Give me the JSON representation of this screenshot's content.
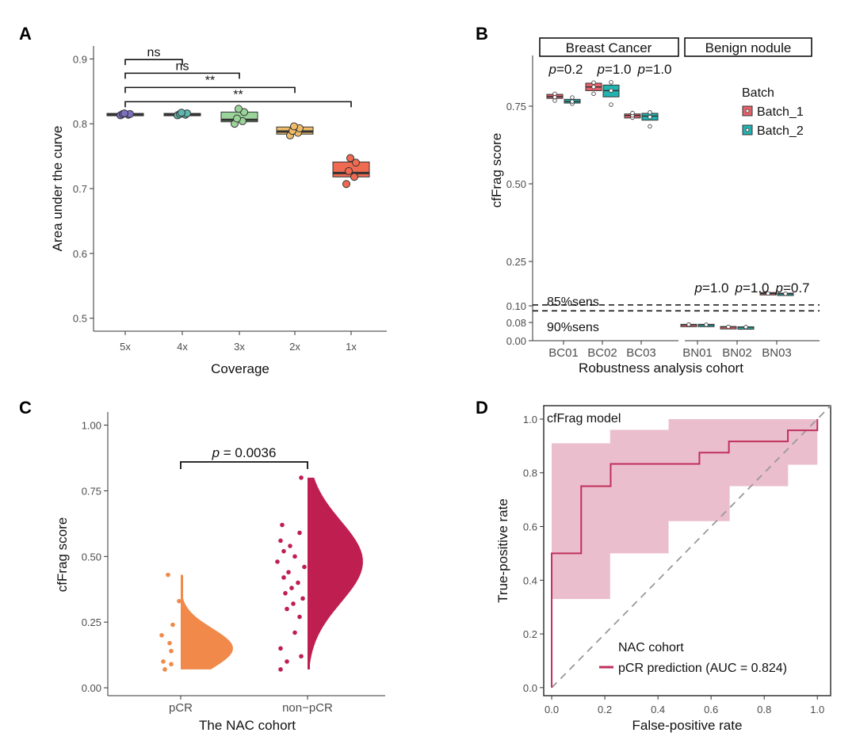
{
  "chart_data": [
    {
      "panel": "A",
      "type": "box",
      "xlabel": "Coverage",
      "ylabel": "Area under the curve",
      "ylim": [
        0.48,
        0.92
      ],
      "yticks": [
        "0.5",
        "0.6",
        "0.7",
        "0.8",
        "0.9"
      ],
      "categories": [
        "5x",
        "4x",
        "3x",
        "2x",
        "1x"
      ],
      "colors": [
        "#7b6fbf",
        "#5fb8b0",
        "#9ad49a",
        "#efbc6a",
        "#ef6a50"
      ],
      "boxes": [
        {
          "q1": 0.813,
          "median": 0.814,
          "q3": 0.816,
          "points": [
            0.813,
            0.814,
            0.815,
            0.815,
            0.816
          ]
        },
        {
          "q1": 0.813,
          "median": 0.814,
          "q3": 0.816,
          "points": [
            0.813,
            0.814,
            0.815,
            0.816,
            0.817
          ]
        },
        {
          "q1": 0.803,
          "median": 0.806,
          "q3": 0.818,
          "points": [
            0.8,
            0.804,
            0.808,
            0.818,
            0.823
          ]
        },
        {
          "q1": 0.784,
          "median": 0.788,
          "q3": 0.795,
          "points": [
            0.782,
            0.786,
            0.789,
            0.793,
            0.796
          ]
        },
        {
          "q1": 0.718,
          "median": 0.724,
          "q3": 0.741,
          "points": [
            0.707,
            0.718,
            0.727,
            0.74,
            0.747
          ]
        }
      ],
      "comparisons": [
        {
          "from": "5x",
          "to": "4x",
          "label": "ns",
          "y": 0.899
        },
        {
          "from": "5x",
          "to": "3x",
          "label": "ns",
          "y": 0.878
        },
        {
          "from": "5x",
          "to": "2x",
          "label": "**",
          "y": 0.856
        },
        {
          "from": "5x",
          "to": "1x",
          "label": "**",
          "y": 0.834
        }
      ]
    },
    {
      "panel": "B",
      "type": "box",
      "xlabel": "Robustness analysis cohort",
      "ylabel": "cfFrag score",
      "yticks": [
        "0.00",
        "0.08",
        "0.10",
        "0.25",
        "0.50",
        "0.75"
      ],
      "categories": [
        "BC01",
        "BC02",
        "BC03",
        "BN01",
        "BN02",
        "BN03"
      ],
      "facets": [
        "Breast Cancer",
        "Benign nodule"
      ],
      "legend": {
        "title": "Batch",
        "entries": [
          "Batch_1",
          "Batch_2"
        ],
        "colors": [
          "#e8616b",
          "#22b3b0"
        ]
      },
      "pvalues": [
        "=0.2",
        "=1.0",
        "=1.0",
        "=1.0",
        "=1.0",
        "=0.7"
      ],
      "pletter": "p",
      "thresholds": [
        {
          "label": "85%sens",
          "value": 0.103
        },
        {
          "label": "90%sens",
          "value": 0.094
        }
      ],
      "boxes": [
        {
          "q1": 0.775,
          "median": 0.781,
          "q3": 0.788,
          "points": [
            0.768,
            0.779,
            0.79
          ]
        },
        {
          "q1": 0.76,
          "median": 0.765,
          "q3": 0.772,
          "points": [
            0.758,
            0.765,
            0.778
          ]
        },
        {
          "q1": 0.8,
          "median": 0.812,
          "q3": 0.824,
          "points": [
            0.79,
            0.812,
            0.826
          ]
        },
        {
          "q1": 0.78,
          "median": 0.8,
          "q3": 0.818,
          "points": [
            0.755,
            0.8,
            0.827
          ]
        },
        {
          "q1": 0.712,
          "median": 0.72,
          "q3": 0.725,
          "points": [
            0.713,
            0.72,
            0.728
          ]
        },
        {
          "q1": 0.705,
          "median": 0.718,
          "q3": 0.727,
          "points": [
            0.685,
            0.715,
            0.73
          ]
        },
        {
          "q1": 0.069,
          "median": 0.07,
          "q3": 0.072,
          "points": [
            0.07,
            0.071
          ]
        },
        {
          "q1": 0.069,
          "median": 0.07,
          "q3": 0.072,
          "points": [
            0.07
          ]
        },
        {
          "q1": 0.06,
          "median": 0.061,
          "q3": 0.062,
          "points": [
            0.061
          ]
        },
        {
          "q1": 0.059,
          "median": 0.06,
          "q3": 0.061,
          "points": [
            0.06
          ]
        },
        {
          "q1": 0.14,
          "median": 0.142,
          "q3": 0.145,
          "points": [
            0.142
          ]
        },
        {
          "q1": 0.139,
          "median": 0.141,
          "q3": 0.143,
          "points": [
            0.141
          ]
        }
      ]
    },
    {
      "panel": "C",
      "type": "violin",
      "xlabel": "The NAC cohort",
      "ylabel": "cfFrag score",
      "ylim": [
        -0.03,
        1.05
      ],
      "yticks": [
        "0.00",
        "0.25",
        "0.50",
        "0.75",
        "1.00"
      ],
      "categories": [
        "pCR",
        "non−pCR"
      ],
      "colors": [
        "#f0894a",
        "#be1e50"
      ],
      "pvalue": "= 0.0036",
      "pletter": "p",
      "points": [
        [
          0.43,
          0.33,
          0.24,
          0.2,
          0.17,
          0.14,
          0.1,
          0.09,
          0.07
        ],
        [
          0.8,
          0.62,
          0.59,
          0.56,
          0.54,
          0.52,
          0.5,
          0.48,
          0.46,
          0.44,
          0.42,
          0.4,
          0.38,
          0.36,
          0.34,
          0.32,
          0.3,
          0.27,
          0.21,
          0.15,
          0.12,
          0.1,
          0.07
        ]
      ],
      "violin_min": [
        0.07,
        0.07
      ],
      "violin_max": [
        0.43,
        0.8
      ]
    },
    {
      "panel": "D",
      "type": "line",
      "xlabel": "False-positive rate",
      "ylabel": "True-positive rate",
      "xlim": [
        -0.03,
        1.05
      ],
      "ylim": [
        -0.03,
        1.05
      ],
      "xticks": [
        "0.0",
        "0.2",
        "0.4",
        "0.6",
        "0.8",
        "1.0"
      ],
      "yticks": [
        "0.0",
        "0.2",
        "0.4",
        "0.6",
        "0.8",
        "1.0"
      ],
      "title": "cfFrag model",
      "legend": {
        "title": "NAC cohort",
        "entry": "pCR prediction (AUC = 0.824)",
        "color": "#c0305c"
      },
      "roc_x": [
        0,
        0,
        0,
        0.111,
        0.111,
        0.222,
        0.222,
        0.556,
        0.556,
        0.667,
        0.667,
        0.889,
        0.889,
        1.0,
        1.0
      ],
      "roc_y": [
        0,
        0.08,
        0.5,
        0.5,
        0.75,
        0.75,
        0.833,
        0.833,
        0.875,
        0.875,
        0.917,
        0.917,
        0.958,
        0.958,
        1.0
      ],
      "ci_upper_x": [
        0,
        0.22,
        0.22,
        0.44,
        0.44,
        1.0,
        1.0
      ],
      "ci_upper_y": [
        0.91,
        0.91,
        0.96,
        0.96,
        1.0,
        1.0,
        1.0
      ],
      "ci_lower_x": [
        0,
        0.22,
        0.22,
        0.44,
        0.44,
        0.67,
        0.67,
        0.89,
        0.89,
        1.0,
        1.0
      ],
      "ci_lower_y": [
        0.33,
        0.33,
        0.5,
        0.5,
        0.62,
        0.62,
        0.75,
        0.75,
        0.83,
        0.83,
        1.0
      ]
    }
  ]
}
